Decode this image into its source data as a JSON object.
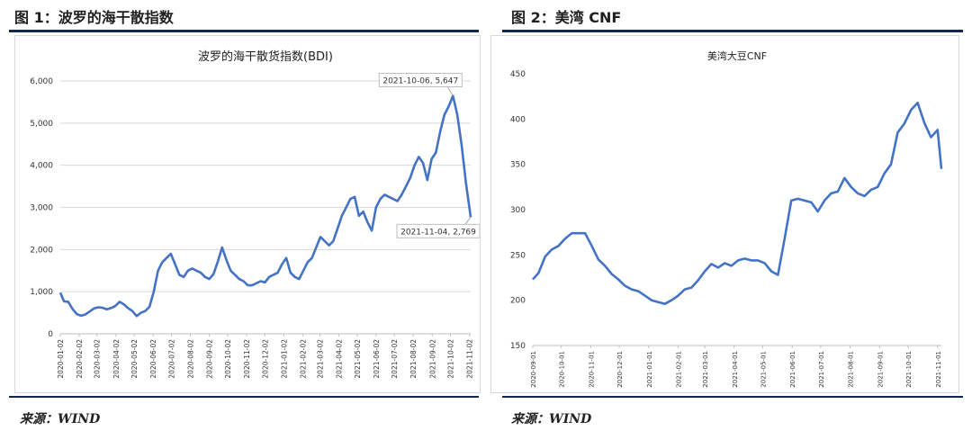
{
  "figure1": {
    "heading": "图 1：波罗的海干散指数",
    "source": "来源：WIND"
  },
  "figure2": {
    "heading": "图 2：美湾 CNF",
    "source": "来源：WIND"
  },
  "chart_data": [
    {
      "type": "line",
      "title": "波罗的海干散货指数(BDI)",
      "xlabel": "",
      "ylabel": "",
      "ylim": [
        0,
        6000
      ],
      "yticks": [
        "0",
        "1,000",
        "2,000",
        "3,000",
        "4,000",
        "5,000",
        "6,000"
      ],
      "xticks": [
        "2020-01-02",
        "2020-02-02",
        "2020-03-02",
        "2020-04-02",
        "2020-05-02",
        "2020-06-02",
        "2020-07-02",
        "2020-08-02",
        "2020-09-02",
        "2020-10-02",
        "2020-11-02",
        "2020-12-02",
        "2021-01-02",
        "2021-02-02",
        "2021-03-02",
        "2021-04-02",
        "2021-05-02",
        "2021-06-02",
        "2021-07-02",
        "2021-08-02",
        "2021-09-02",
        "2021-10-02",
        "2021-11-02"
      ],
      "grid": "horizontal",
      "line_color": "#4472c4",
      "annotations": [
        {
          "label": "2021-10-06, 5,647",
          "x": "2021-10-06",
          "y": 5647
        },
        {
          "label": "2021-11-04, 2,769",
          "x": "2021-11-04",
          "y": 2769
        }
      ],
      "series": [
        {
          "x": [
            "2020-01-02",
            "2020-01-08",
            "2020-01-15",
            "2020-01-22",
            "2020-01-29",
            "2020-02-05",
            "2020-02-12",
            "2020-02-19",
            "2020-02-26",
            "2020-03-04",
            "2020-03-11",
            "2020-03-18",
            "2020-03-25",
            "2020-04-01",
            "2020-04-08",
            "2020-04-15",
            "2020-04-22",
            "2020-04-29",
            "2020-05-06",
            "2020-05-13",
            "2020-05-20",
            "2020-05-27",
            "2020-06-03",
            "2020-06-10",
            "2020-06-17",
            "2020-06-24",
            "2020-07-01",
            "2020-07-08",
            "2020-07-15",
            "2020-07-22",
            "2020-07-29",
            "2020-08-05",
            "2020-08-12",
            "2020-08-19",
            "2020-08-26",
            "2020-09-02",
            "2020-09-09",
            "2020-09-16",
            "2020-09-23",
            "2020-09-30",
            "2020-10-07",
            "2020-10-14",
            "2020-10-21",
            "2020-10-28",
            "2020-11-04",
            "2020-11-11",
            "2020-11-18",
            "2020-11-25",
            "2020-12-02",
            "2020-12-09",
            "2020-12-16",
            "2020-12-23",
            "2020-12-30",
            "2021-01-06",
            "2021-01-13",
            "2021-01-20",
            "2021-01-27",
            "2021-02-03",
            "2021-02-10",
            "2021-02-17",
            "2021-02-24",
            "2021-03-03",
            "2021-03-10",
            "2021-03-17",
            "2021-03-24",
            "2021-03-31",
            "2021-04-07",
            "2021-04-14",
            "2021-04-21",
            "2021-04-28",
            "2021-05-05",
            "2021-05-12",
            "2021-05-19",
            "2021-05-26",
            "2021-06-02",
            "2021-06-09",
            "2021-06-16",
            "2021-06-23",
            "2021-06-30",
            "2021-07-07",
            "2021-07-14",
            "2021-07-21",
            "2021-07-28",
            "2021-08-04",
            "2021-08-11",
            "2021-08-18",
            "2021-08-25",
            "2021-09-01",
            "2021-09-08",
            "2021-09-15",
            "2021-09-22",
            "2021-09-29",
            "2021-10-06",
            "2021-10-13",
            "2021-10-20",
            "2021-10-27",
            "2021-11-04"
          ],
          "y": [
            976,
            770,
            760,
            590,
            470,
            430,
            460,
            530,
            600,
            630,
            620,
            580,
            610,
            660,
            760,
            700,
            610,
            540,
            420,
            500,
            540,
            640,
            1000,
            1500,
            1700,
            1800,
            1900,
            1650,
            1400,
            1350,
            1500,
            1550,
            1500,
            1450,
            1350,
            1300,
            1420,
            1720,
            2050,
            1750,
            1500,
            1400,
            1300,
            1250,
            1150,
            1150,
            1200,
            1250,
            1220,
            1350,
            1400,
            1450,
            1650,
            1800,
            1450,
            1350,
            1300,
            1500,
            1700,
            1800,
            2050,
            2300,
            2200,
            2100,
            2200,
            2500,
            2800,
            3000,
            3200,
            3250,
            2800,
            2900,
            2650,
            2450,
            3000,
            3200,
            3300,
            3250,
            3200,
            3150,
            3300,
            3500,
            3700,
            4000,
            4200,
            4050,
            3650,
            4150,
            4300,
            4800,
            5200,
            5400,
            5647,
            5200,
            4500,
            3600,
            2769
          ]
        }
      ]
    },
    {
      "type": "line",
      "title": "美湾大豆CNF",
      "xlabel": "",
      "ylabel": "",
      "ylim": [
        150,
        450
      ],
      "yticks": [
        "150",
        "200",
        "250",
        "300",
        "350",
        "400",
        "450"
      ],
      "xticks": [
        "2020-09-01",
        "2020-10-01",
        "2020-11-01",
        "2020-12-01",
        "2021-01-01",
        "2021-02-01",
        "2021-03-01",
        "2021-04-01",
        "2021-05-01",
        "2021-06-01",
        "2021-07-01",
        "2021-08-01",
        "2021-09-01",
        "2021-10-01",
        "2021-11-01"
      ],
      "grid": "none",
      "line_color": "#4472c4",
      "series": [
        {
          "x": [
            "2020-09-01",
            "2020-09-07",
            "2020-09-14",
            "2020-09-21",
            "2020-09-28",
            "2020-10-05",
            "2020-10-12",
            "2020-10-19",
            "2020-10-26",
            "2020-11-02",
            "2020-11-09",
            "2020-11-16",
            "2020-11-23",
            "2020-11-30",
            "2020-12-07",
            "2020-12-14",
            "2020-12-21",
            "2020-12-28",
            "2021-01-04",
            "2021-01-11",
            "2021-01-18",
            "2021-01-25",
            "2021-02-01",
            "2021-02-08",
            "2021-02-15",
            "2021-02-22",
            "2021-03-01",
            "2021-03-08",
            "2021-03-15",
            "2021-03-22",
            "2021-03-29",
            "2021-04-05",
            "2021-04-12",
            "2021-04-19",
            "2021-04-26",
            "2021-05-03",
            "2021-05-10",
            "2021-05-17",
            "2021-05-24",
            "2021-05-31",
            "2021-06-07",
            "2021-06-14",
            "2021-06-21",
            "2021-06-28",
            "2021-07-05",
            "2021-07-12",
            "2021-07-19",
            "2021-07-26",
            "2021-08-02",
            "2021-08-09",
            "2021-08-16",
            "2021-08-23",
            "2021-08-30",
            "2021-09-06",
            "2021-09-13",
            "2021-09-20",
            "2021-09-27",
            "2021-10-04",
            "2021-10-11",
            "2021-10-18",
            "2021-10-25",
            "2021-11-01",
            "2021-11-05"
          ],
          "y": [
            223,
            230,
            248,
            256,
            260,
            268,
            274,
            274,
            274,
            260,
            245,
            238,
            229,
            223,
            216,
            212,
            210,
            205,
            200,
            198,
            196,
            200,
            205,
            212,
            214,
            222,
            232,
            240,
            236,
            241,
            238,
            244,
            246,
            244,
            244,
            241,
            232,
            228,
            268,
            310,
            312,
            310,
            308,
            298,
            310,
            318,
            320,
            335,
            325,
            318,
            315,
            322,
            325,
            340,
            350,
            385,
            395,
            410,
            418,
            396,
            380,
            388,
            345
          ]
        }
      ]
    }
  ]
}
